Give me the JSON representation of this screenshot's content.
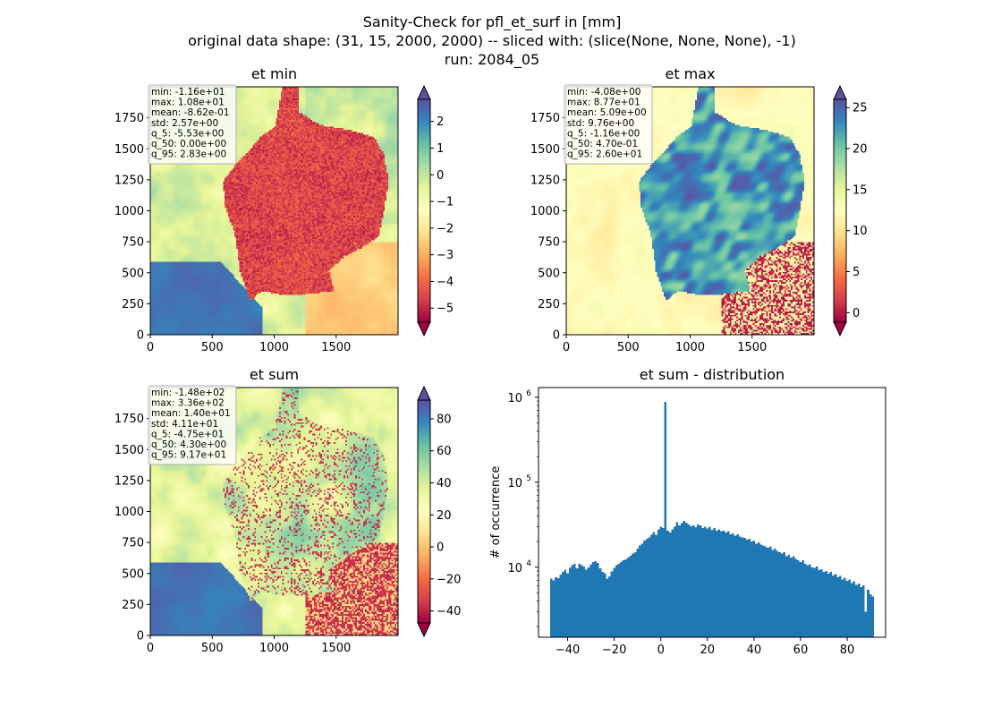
{
  "figure": {
    "title_lines": [
      "Sanity-Check for pfl_et_surf in [mm]",
      "original data shape: (31, 15, 2000, 2000) -- sliced with: (slice(None, None, None), -1)",
      "run: 2084_05"
    ]
  },
  "colors": {
    "spectral": [
      "#9e0142",
      "#d53e4f",
      "#f46d43",
      "#fdae61",
      "#fee08b",
      "#ffffbf",
      "#e6f598",
      "#abdda4",
      "#66c2a5",
      "#3288bd",
      "#5e4fa2"
    ],
    "hist_bar": "#1f77b4"
  },
  "chart_data": [
    {
      "type": "heatmap",
      "title": "et min",
      "xticks": [
        0,
        500,
        1000,
        1500
      ],
      "yticks": [
        0,
        250,
        500,
        750,
        1000,
        1250,
        1500,
        1750
      ],
      "xlim": [
        0,
        2000
      ],
      "ylim": [
        0,
        2000
      ],
      "colorbar": {
        "vmin": -5.53,
        "vmax": 2.83,
        "ticks": [
          2,
          1,
          0,
          -1,
          -2,
          -3,
          -4,
          -5
        ],
        "cmap": "Spectral",
        "extend": "both"
      },
      "stats": [
        "min: -1.16e+01",
        "max: 1.08e+01",
        "mean: -8.62e-01",
        "std: 2.57e+00",
        "q_5: -5.53e+00",
        "q_50: 0.00e+00",
        "q_95: 2.83e+00"
      ]
    },
    {
      "type": "heatmap",
      "title": "et max",
      "xticks": [
        0,
        500,
        1000,
        1500
      ],
      "yticks": [
        0,
        250,
        500,
        750,
        1000,
        1250,
        1500,
        1750
      ],
      "xlim": [
        0,
        2000
      ],
      "ylim": [
        0,
        2000
      ],
      "colorbar": {
        "vmin": -1.16,
        "vmax": 26.0,
        "ticks": [
          25,
          20,
          15,
          10,
          5,
          0
        ],
        "cmap": "Spectral",
        "extend": "both"
      },
      "stats": [
        "min: -4.08e+00",
        "max: 8.77e+01",
        "mean: 5.09e+00",
        "std: 9.76e+00",
        "q_5: -1.16e+00",
        "q_50: 4.70e-01",
        "q_95: 2.60e+01"
      ]
    },
    {
      "type": "heatmap",
      "title": "et sum",
      "xticks": [
        0,
        500,
        1000,
        1500
      ],
      "yticks": [
        0,
        250,
        500,
        750,
        1000,
        1250,
        1500,
        1750
      ],
      "xlim": [
        0,
        2000
      ],
      "ylim": [
        0,
        2000
      ],
      "colorbar": {
        "vmin": -47.5,
        "vmax": 91.7,
        "ticks": [
          80,
          60,
          40,
          20,
          0,
          -20,
          -40
        ],
        "cmap": "Spectral",
        "extend": "both"
      },
      "stats": [
        "min: -1.48e+02",
        "max: 3.36e+02",
        "mean: 1.40e+01",
        "std: 4.11e+01",
        "q_5: -4.75e+01",
        "q_50: 4.30e+00",
        "q_95: 9.17e+01"
      ]
    },
    {
      "type": "bar",
      "title": "et sum - distribution",
      "ylabel": "# of occurrence",
      "yscale": "log",
      "ylim": [
        1500,
        1300000
      ],
      "xlim": [
        -52.5,
        96.5
      ],
      "xticks": [
        -40,
        -20,
        0,
        20,
        40,
        60,
        80
      ],
      "yticks": [
        {
          "value": 10000,
          "base": "10",
          "exp": "4"
        },
        {
          "value": 100000,
          "base": "10",
          "exp": "5"
        },
        {
          "value": 1000000,
          "base": "10",
          "exp": "6"
        }
      ],
      "bins": {
        "start": -47.5,
        "width": 1.0
      },
      "values": [
        7300,
        7000,
        7600,
        7400,
        8200,
        8800,
        9300,
        8500,
        9800,
        10500,
        11000,
        9700,
        11000,
        10600,
        10200,
        9400,
        9900,
        10800,
        11500,
        11800,
        11200,
        9700,
        8800,
        8500,
        7300,
        7800,
        8900,
        9800,
        10500,
        11000,
        11500,
        12000,
        12300,
        13000,
        13600,
        14500,
        15000,
        16500,
        18000,
        19000,
        20500,
        21500,
        22500,
        24000,
        26000,
        24000,
        28000,
        30000,
        29000,
        880000,
        27000,
        25500,
        28000,
        30000,
        34000,
        31000,
        33000,
        35000,
        33500,
        32000,
        30500,
        31000,
        29500,
        32000,
        31000,
        29000,
        30000,
        28500,
        30000,
        27500,
        29000,
        27000,
        28000,
        26500,
        27000,
        25500,
        26500,
        24500,
        25000,
        23500,
        24500,
        23000,
        22500,
        22000,
        21000,
        21500,
        20000,
        20500,
        19000,
        19500,
        18500,
        18000,
        17500,
        17000,
        17500,
        16000,
        16500,
        15500,
        15000,
        14500,
        15000,
        13500,
        14000,
        13000,
        13500,
        12500,
        12000,
        11500,
        12000,
        11000,
        10500,
        10800,
        10000,
        9800,
        10200,
        9200,
        9500,
        8800,
        9000,
        8400,
        8800,
        8000,
        8300,
        7600,
        7900,
        7200,
        7500,
        6900,
        7200,
        6500,
        6800,
        6200,
        6400,
        5800,
        6100,
        3000,
        5400,
        4800,
        4500
      ]
    }
  ]
}
